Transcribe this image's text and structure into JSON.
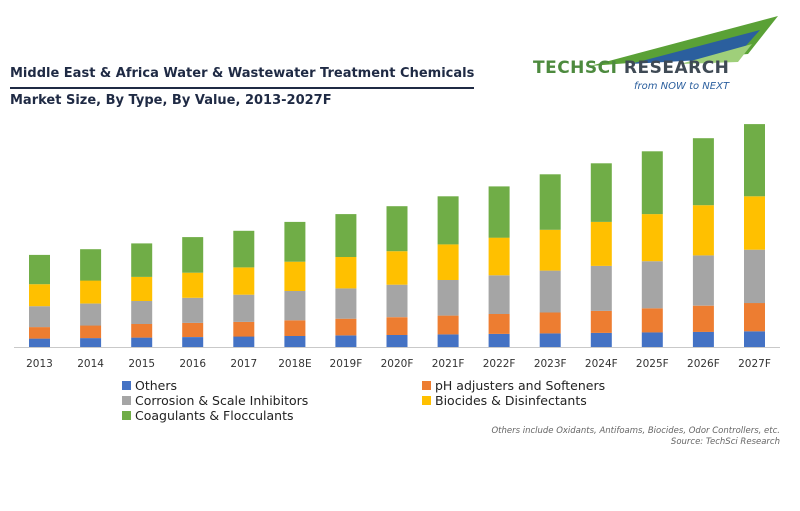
{
  "header": {
    "title_line1": "Middle East & Africa Water & Wastewater Treatment Chemicals",
    "title_line2": "Market Size, By Type, By Value, 2013-2027F"
  },
  "logo": {
    "brand_part1": "TECHSCI",
    "brand_part2": " RESEARCH",
    "tagline": "from NOW to NEXT",
    "green": "#5aa136",
    "blue": "#2b5f9e"
  },
  "footer": {
    "note": "Others include Oxidants, Antifoams, Biocides, Odor Controllers, etc.",
    "source": "Source: TechSci Research"
  },
  "chart_data": {
    "type": "bar",
    "stacked": true,
    "title": "Middle East & Africa Water & Wastewater Treatment Chemicals Market Size, By Type, By Value, 2013-2027F",
    "xlabel": "",
    "ylabel": "",
    "ylim": [
      0,
      215
    ],
    "grid": false,
    "legend_position": "bottom",
    "categories": [
      "2013",
      "2014",
      "2015",
      "2016",
      "2017",
      "2018E",
      "2019F",
      "2020F",
      "2021F",
      "2022F",
      "2023F",
      "2024F",
      "2025F",
      "2026F",
      "2027F"
    ],
    "series": [
      {
        "name": "Others",
        "color": "#4472c4",
        "values": [
          8,
          8.5,
          9,
          9.5,
          10,
          10.5,
          11,
          11.5,
          12,
          12.5,
          13,
          13.5,
          14,
          14.5,
          15
        ]
      },
      {
        "name": "pH adjusters and Softeners",
        "color": "#ed7d31",
        "values": [
          11,
          12,
          13,
          13.5,
          14,
          15,
          16,
          17,
          18,
          19,
          20,
          21,
          23,
          25,
          27
        ]
      },
      {
        "name": "Corrosion & Scale Inhibitors",
        "color": "#a5a5a5",
        "values": [
          20,
          21,
          22,
          24,
          26,
          28,
          29,
          31,
          34,
          37,
          40,
          43,
          45,
          48,
          51
        ]
      },
      {
        "name": "Biocides & Disinfectants",
        "color": "#ffc000",
        "values": [
          21,
          22,
          23,
          24,
          26,
          28,
          30,
          32,
          34,
          36,
          39,
          42,
          45,
          48,
          51
        ]
      },
      {
        "name": "Coagulants & Flocculants",
        "color": "#70ad47",
        "values": [
          28,
          30,
          32,
          34,
          35,
          38,
          41,
          43,
          46,
          49,
          53,
          56,
          60,
          64,
          69
        ]
      }
    ]
  }
}
